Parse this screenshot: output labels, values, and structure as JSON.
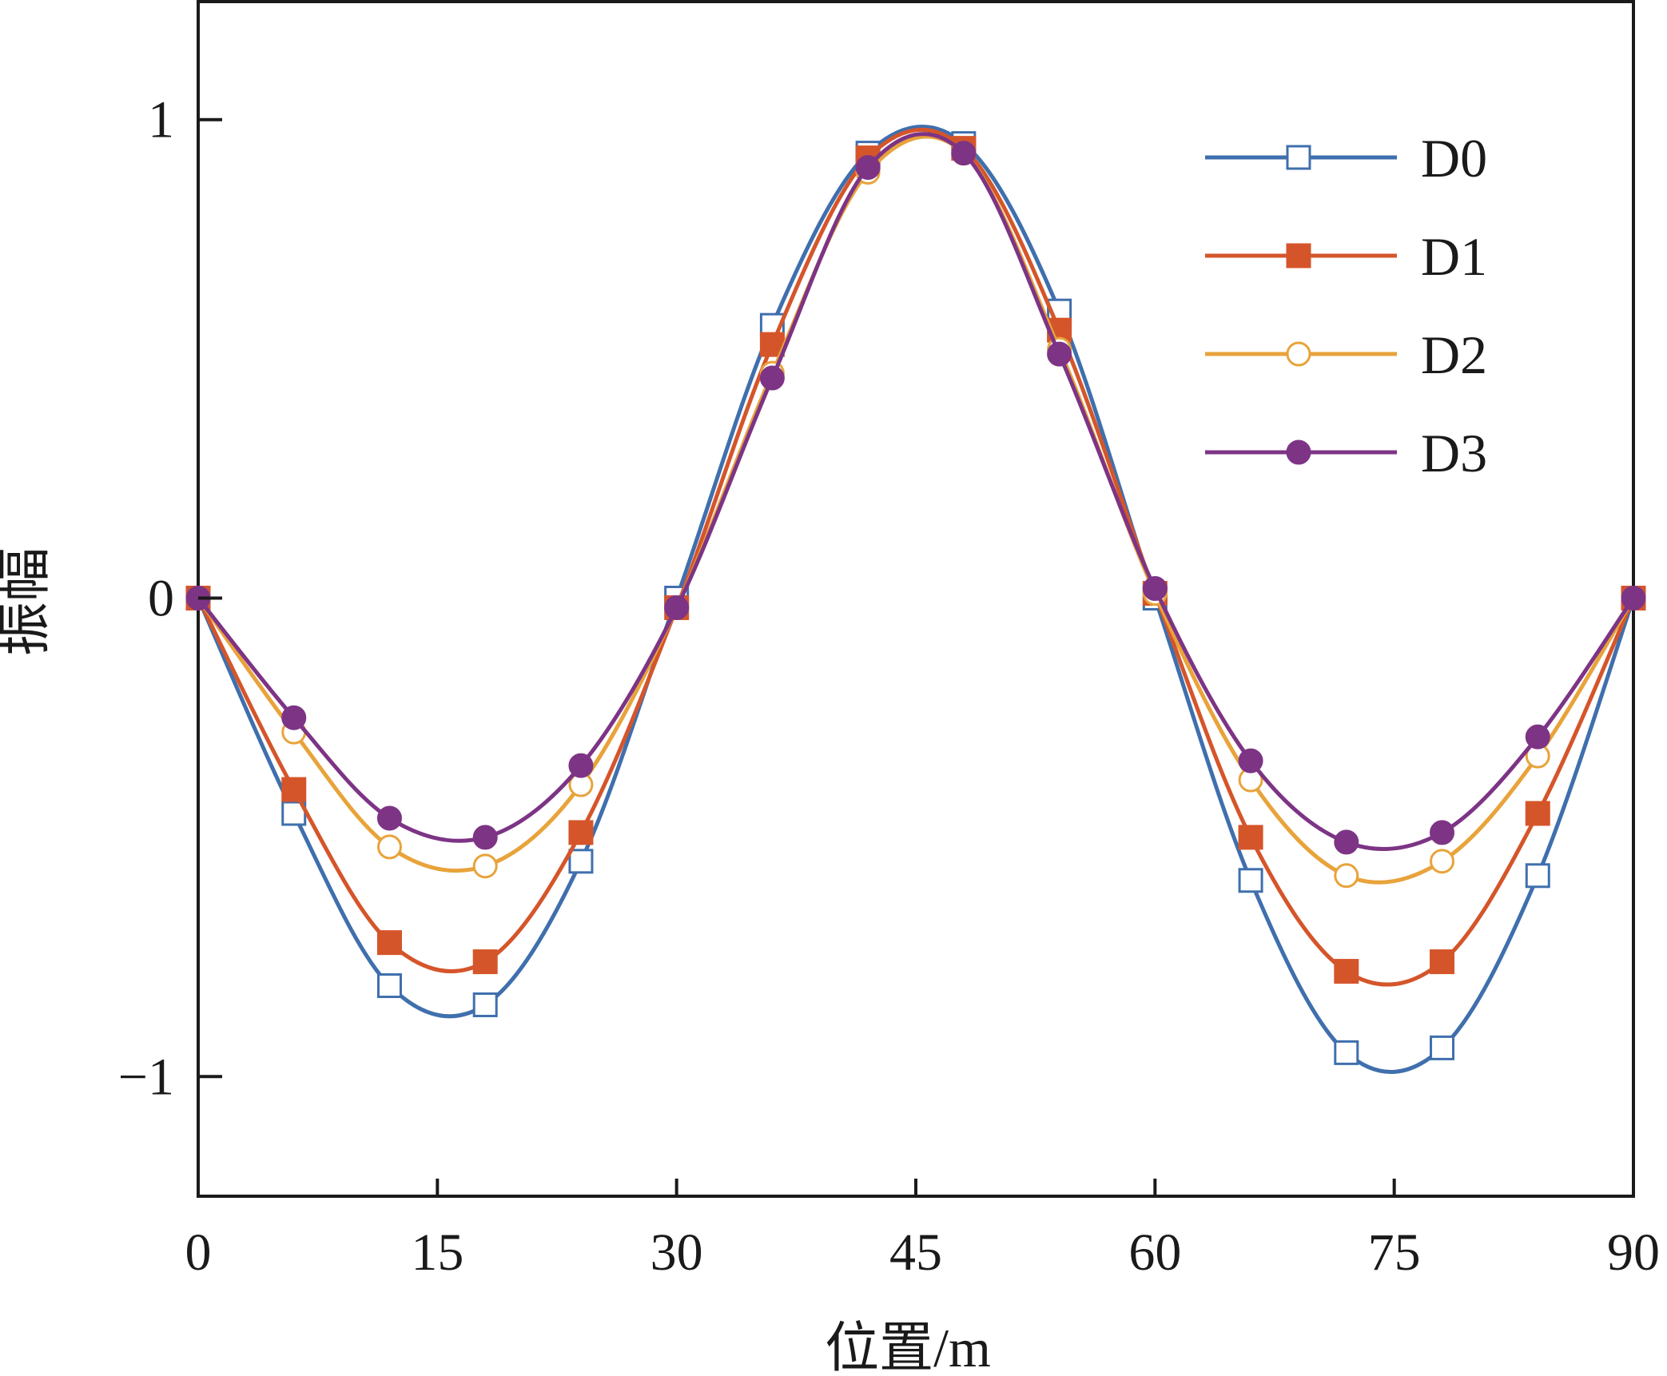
{
  "chart_data": {
    "type": "line",
    "xlabel": "位置/m",
    "ylabel": "振幅",
    "xlim": [
      0,
      90
    ],
    "ylim": [
      -1.25,
      1.25
    ],
    "xticks": [
      0,
      15,
      30,
      45,
      60,
      75,
      90
    ],
    "xtick_labels": [
      "0",
      "15",
      "30",
      "45",
      "60",
      "75",
      "90"
    ],
    "yticks": [
      1,
      0,
      -1
    ],
    "ytick_labels": [
      "1",
      "0",
      "−1"
    ],
    "grid": false,
    "legend_position": "top-right",
    "x": [
      0,
      6,
      12,
      18,
      24,
      30,
      36,
      42,
      48,
      54,
      60,
      66,
      72,
      78,
      84,
      90
    ],
    "series": [
      {
        "name": "D0",
        "color": "#3f6fad",
        "marker": "square-open",
        "values": [
          0,
          -0.45,
          -0.81,
          -0.85,
          -0.55,
          0.0,
          0.57,
          0.93,
          0.95,
          0.6,
          0.0,
          -0.59,
          -0.95,
          -0.94,
          -0.58,
          0
        ]
      },
      {
        "name": "D1",
        "color": "#d5552a",
        "marker": "square-filled",
        "values": [
          0,
          -0.4,
          -0.72,
          -0.76,
          -0.49,
          -0.02,
          0.53,
          0.92,
          0.94,
          0.56,
          0.01,
          -0.5,
          -0.78,
          -0.76,
          -0.45,
          0
        ]
      },
      {
        "name": "D2",
        "color": "#e8a33a",
        "marker": "circle-open",
        "values": [
          0,
          -0.28,
          -0.52,
          -0.56,
          -0.39,
          -0.02,
          0.47,
          0.89,
          0.93,
          0.52,
          0.01,
          -0.38,
          -0.58,
          -0.55,
          -0.33,
          0
        ]
      },
      {
        "name": "D3",
        "color": "#7d3485",
        "marker": "circle-filled",
        "values": [
          0,
          -0.25,
          -0.46,
          -0.5,
          -0.35,
          -0.02,
          0.46,
          0.9,
          0.93,
          0.51,
          0.02,
          -0.34,
          -0.51,
          -0.49,
          -0.29,
          0
        ]
      }
    ]
  }
}
